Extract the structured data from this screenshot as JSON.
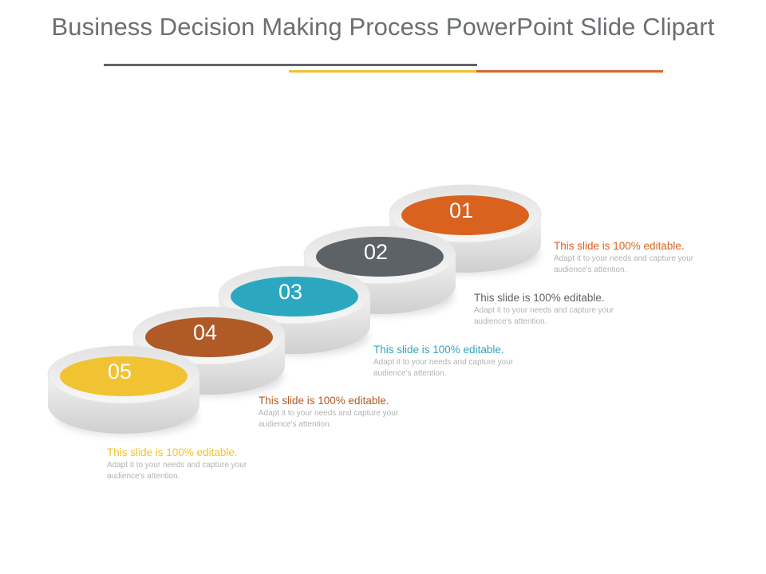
{
  "slide": {
    "title": "Business Decision Making Process PowerPoint Slide Clipart"
  },
  "steps": [
    {
      "number": "01",
      "heading": "This slide is 100% editable.",
      "body": "Adapt it to your needs and capture your audience's attention.",
      "color": "#d9621f"
    },
    {
      "number": "02",
      "heading": "This slide is 100% editable.",
      "body": "Adapt it to your needs and capture your audience's attention.",
      "color": "#5d6267"
    },
    {
      "number": "03",
      "heading": "This slide is 100% editable.",
      "body": "Adapt it to your needs and capture your audience's attention.",
      "color": "#2ba8c0"
    },
    {
      "number": "04",
      "heading": "This slide is 100% editable.",
      "body": "Adapt it to your needs and capture your audience's attention.",
      "color": "#b05a28"
    },
    {
      "number": "05",
      "heading": "This slide is 100% editable.",
      "body": "Adapt it to your needs and capture your audience's attention.",
      "color": "#f1c232"
    }
  ],
  "rule_colors": [
    "#5f6468",
    "#f1c232",
    "#d6682a"
  ]
}
